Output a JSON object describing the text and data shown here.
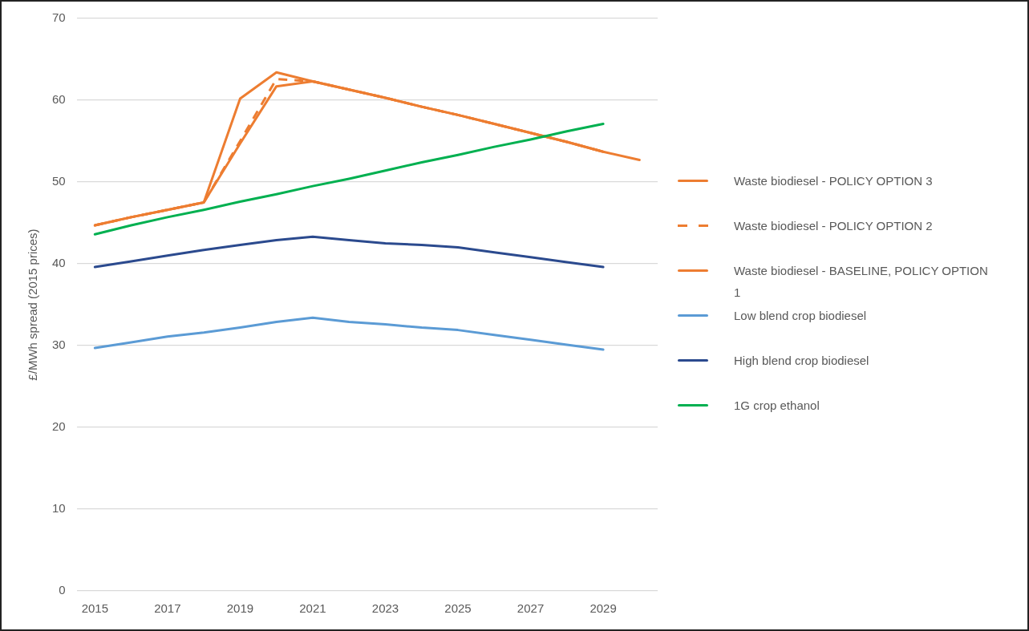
{
  "chart_data": {
    "type": "line",
    "ylabel": "£/MWh spread (2015 prices)",
    "categories": [
      "2015",
      null,
      "2017",
      null,
      "2019",
      null,
      "2021",
      null,
      "2023",
      null,
      "2025",
      null,
      "2027",
      null,
      "2029",
      null
    ],
    "series": [
      {
        "name": "Waste biodiesel - POLICY OPTION 3",
        "color": "#ed7d31",
        "line_style": "solid",
        "values": [
          44.7,
          45.7,
          46.6,
          47.5,
          60.2,
          63.4,
          62.3,
          61.3,
          60.3,
          59.2,
          58.2,
          57.1,
          56.0,
          54.9,
          53.7,
          52.7
        ]
      },
      {
        "name": "Waste biodiesel - POLICY OPTION 2",
        "color": "#ed7d31",
        "line_style": "dashed",
        "values": [
          44.7,
          45.7,
          46.6,
          47.5,
          55.0,
          62.6,
          62.3,
          61.3,
          60.3,
          59.2,
          58.2,
          57.1,
          56.0,
          54.9,
          53.7,
          null
        ]
      },
      {
        "name": "Waste biodiesel - BASELINE, POLICY OPTION 1",
        "color": "#ed7d31",
        "line_style": "solid",
        "values": [
          44.7,
          45.7,
          46.6,
          47.5,
          54.7,
          61.7,
          62.3,
          61.3,
          60.3,
          59.2,
          58.2,
          57.1,
          56.0,
          54.9,
          53.7,
          null
        ]
      },
      {
        "name": "Low blend crop biodiesel",
        "color": "#5b9bd5",
        "line_style": "solid",
        "values": [
          29.7,
          30.4,
          31.1,
          31.6,
          32.2,
          32.9,
          33.4,
          32.9,
          32.6,
          32.2,
          31.9,
          31.3,
          30.7,
          30.1,
          29.5,
          null
        ]
      },
      {
        "name": "High blend crop biodiesel",
        "color": "#2b4a8e",
        "line_style": "solid",
        "values": [
          39.6,
          40.3,
          41.0,
          41.7,
          42.3,
          42.9,
          43.3,
          42.9,
          42.5,
          42.3,
          42.0,
          41.4,
          40.8,
          40.2,
          39.6,
          null
        ]
      },
      {
        "name": "1G crop ethanol",
        "color": "#00b050",
        "line_style": "solid",
        "values": [
          43.6,
          44.7,
          45.7,
          46.6,
          47.6,
          48.5,
          49.5,
          50.4,
          51.4,
          52.4,
          53.3,
          54.3,
          55.2,
          56.2,
          57.1,
          null
        ]
      }
    ],
    "ylim": [
      0,
      70
    ],
    "yticks": [
      0,
      10,
      20,
      30,
      40,
      50,
      60,
      70
    ],
    "grid": "y",
    "legend": "right",
    "marker": "none"
  }
}
